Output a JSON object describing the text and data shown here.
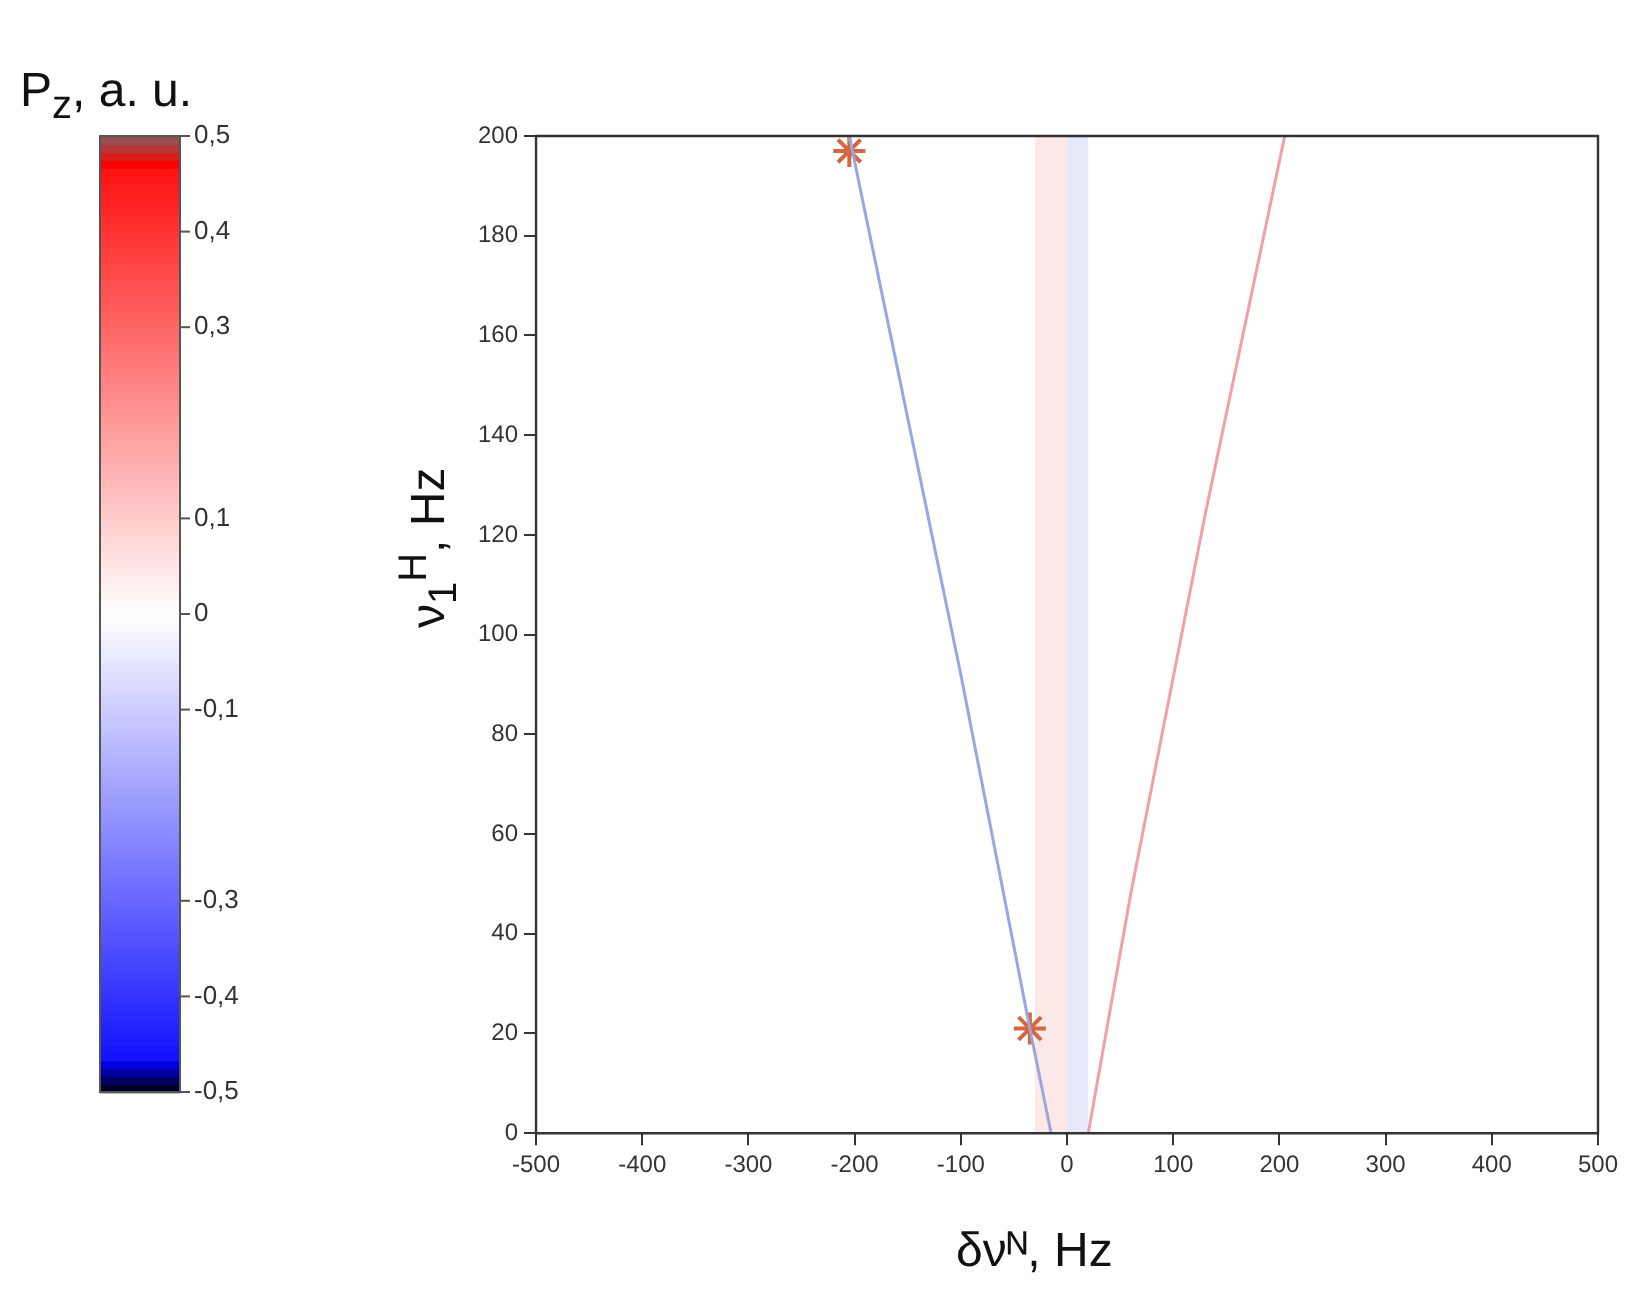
{
  "chart_data": {
    "type": "line",
    "xlabel": "δνᴺ, Hz",
    "ylabel": "ν$_{1}$$^{H}$, Hz",
    "clabel": "P$_{z}$, a. u.",
    "xlim": [
      -500,
      500
    ],
    "xticks": [
      -500,
      -400,
      -300,
      -200,
      -100,
      0,
      100,
      200,
      300,
      400,
      500
    ],
    "ylim": [
      0,
      200
    ],
    "yticks": [
      0,
      20,
      40,
      60,
      80,
      100,
      120,
      140,
      160,
      180,
      200
    ],
    "clim": [
      -0.5,
      0.5
    ],
    "cticks": [
      {
        "value": 0.5,
        "label": "0,5"
      },
      {
        "value": 0.4,
        "label": "0,4"
      },
      {
        "value": 0.3,
        "label": "0,3"
      },
      {
        "value": 0.1,
        "label": "0,1"
      },
      {
        "value": 0,
        "label": "0"
      },
      {
        "value": -0.1,
        "label": "-0,1"
      },
      {
        "value": -0.3,
        "label": "-0,3"
      },
      {
        "value": -0.4,
        "label": "-0,4"
      },
      {
        "value": -0.5,
        "label": "-0,5"
      }
    ],
    "grid": false,
    "legend": false,
    "bands": [
      {
        "axis": "x",
        "from": -30,
        "to": 0,
        "color": "#fde8e8"
      },
      {
        "axis": "x",
        "from": 0,
        "to": 20,
        "color": "#e6e8fb"
      }
    ],
    "series": [
      {
        "color": "#9aa6e0",
        "x": [
          -15,
          -35,
          -100,
          -205
        ],
        "values": [
          0,
          21,
          92,
          200
        ],
        "marker": "none"
      },
      {
        "color": "#f0a0a6",
        "x": [
          20,
          60,
          130,
          205
        ],
        "values": [
          0,
          48,
          124,
          200
        ],
        "marker": "none"
      },
      {
        "type": "scatter",
        "color": "#d4673f",
        "x": [
          -205,
          -35
        ],
        "values": [
          197,
          21
        ],
        "marker": "cross"
      }
    ]
  }
}
